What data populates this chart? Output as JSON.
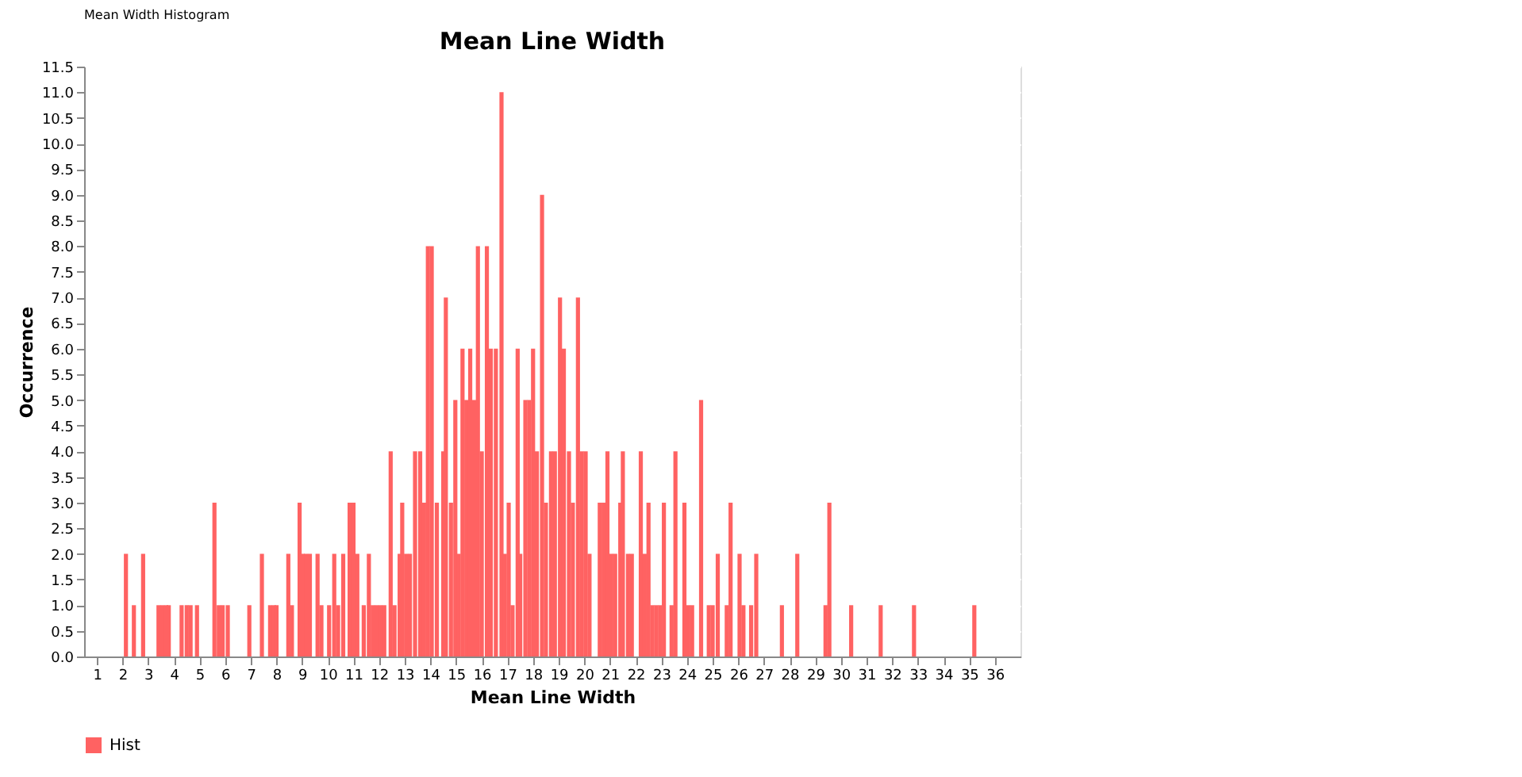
{
  "chart_data": {
    "type": "bar",
    "title": "Mean Line Width",
    "xlabel": "Mean Line Width",
    "ylabel": "Occurrence",
    "annotations": [
      "Mean Width Histogram"
    ],
    "x": [
      2.13,
      2.44,
      2.8,
      3.4,
      3.55,
      3.7,
      3.8,
      4.3,
      4.5,
      4.65,
      4.9,
      5.58,
      5.75,
      5.9,
      6.1,
      6.94,
      7.43,
      7.75,
      7.9,
      8.0,
      8.46,
      8.6,
      8.9,
      9.02,
      9.15,
      9.3,
      9.6,
      9.75,
      10.05,
      10.25,
      10.4,
      10.6,
      10.85,
      11.0,
      11.15,
      11.4,
      11.6,
      11.75,
      11.9,
      12.05,
      12.2,
      12.45,
      12.6,
      12.8,
      12.9,
      13.05,
      13.2,
      13.4,
      13.6,
      13.75,
      13.9,
      14.05,
      14.25,
      14.5,
      14.6,
      14.8,
      14.97,
      15.1,
      15.25,
      15.4,
      15.55,
      15.7,
      15.85,
      16.0,
      16.2,
      16.35,
      16.55,
      16.77,
      16.9,
      17.05,
      17.2,
      17.4,
      17.5,
      17.7,
      17.85,
      18.0,
      18.15,
      18.35,
      18.5,
      18.7,
      18.85,
      19.05,
      19.2,
      19.4,
      19.55,
      19.75,
      19.9,
      20.05,
      20.2,
      20.6,
      20.75,
      20.9,
      21.05,
      21.2,
      21.4,
      21.5,
      21.7,
      21.85,
      22.2,
      22.35,
      22.5,
      22.65,
      22.8,
      22.95,
      23.1,
      23.4,
      23.55,
      23.9,
      24.05,
      24.2,
      24.55,
      24.85,
      25.0,
      25.2,
      25.55,
      25.7,
      26.05,
      26.2,
      26.5,
      26.7,
      27.7,
      28.3,
      29.4,
      29.55,
      30.4,
      31.55,
      32.85,
      35.2
    ],
    "series": [
      {
        "name": "Hist",
        "color": "#ff6262",
        "values": [
          2,
          1,
          2,
          1,
          1,
          1,
          1,
          1,
          1,
          1,
          1,
          3,
          1,
          1,
          1,
          1,
          2,
          1,
          1,
          1,
          2,
          1,
          3,
          2,
          2,
          2,
          2,
          1,
          1,
          2,
          1,
          2,
          3,
          3,
          2,
          1,
          2,
          1,
          1,
          1,
          1,
          4,
          1,
          2,
          3,
          2,
          2,
          4,
          4,
          3,
          8,
          8,
          3,
          4,
          7,
          3,
          5,
          2,
          6,
          5,
          6,
          5,
          8,
          4,
          8,
          6,
          6,
          11,
          2,
          3,
          1,
          6,
          2,
          5,
          5,
          6,
          4,
          9,
          3,
          4,
          4,
          7,
          6,
          4,
          3,
          7,
          4,
          4,
          2,
          3,
          3,
          4,
          2,
          2,
          3,
          4,
          2,
          2,
          4,
          2,
          3,
          1,
          1,
          1,
          3,
          1,
          4,
          3,
          1,
          1,
          5,
          1,
          1,
          2,
          1,
          3,
          2,
          1,
          1,
          2,
          1,
          2,
          1,
          3,
          1,
          1,
          1,
          1
        ]
      }
    ],
    "xlim": [
      0.5,
      37.0
    ],
    "xticks": [
      1,
      2,
      3,
      4,
      5,
      6,
      7,
      8,
      9,
      10,
      11,
      12,
      13,
      14,
      15,
      16,
      17,
      18,
      19,
      20,
      21,
      22,
      23,
      24,
      25,
      26,
      27,
      28,
      29,
      30,
      31,
      32,
      33,
      34,
      35,
      36
    ],
    "ylim": [
      0,
      11.5
    ],
    "yticks": [
      {
        "value": 0,
        "label": "0.0"
      },
      {
        "value": 0.5,
        "label": "0.5"
      },
      {
        "value": 1,
        "label": "1.0"
      },
      {
        "value": 1.5,
        "label": "1.5"
      },
      {
        "value": 2,
        "label": "2.0"
      },
      {
        "value": 2.5,
        "label": "2.5"
      },
      {
        "value": 3,
        "label": "3.0"
      },
      {
        "value": 3.5,
        "label": "3.5"
      },
      {
        "value": 4,
        "label": "4.0"
      },
      {
        "value": 4.5,
        "label": "4.5"
      },
      {
        "value": 5,
        "label": "5.0"
      },
      {
        "value": 5.5,
        "label": "5.5"
      },
      {
        "value": 6,
        "label": "6.0"
      },
      {
        "value": 6.5,
        "label": "6.5"
      },
      {
        "value": 7,
        "label": "7.0"
      },
      {
        "value": 7.5,
        "label": "7.5"
      },
      {
        "value": 8,
        "label": "8.0"
      },
      {
        "value": 8.5,
        "label": "8.5"
      },
      {
        "value": 9,
        "label": "9.0"
      },
      {
        "value": 9.5,
        "label": "9.5"
      },
      {
        "value": 10,
        "label": "10.0"
      },
      {
        "value": 10.5,
        "label": "10.5"
      },
      {
        "value": 11,
        "label": "11.0"
      },
      {
        "value": 11.5,
        "label": "11.5"
      }
    ],
    "grid": true,
    "legend": "bottom"
  }
}
